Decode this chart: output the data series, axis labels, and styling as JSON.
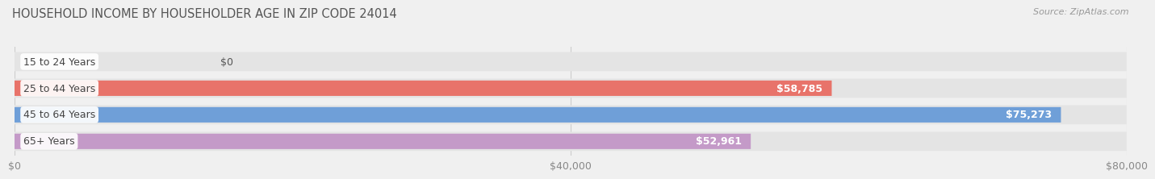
{
  "title": "HOUSEHOLD INCOME BY HOUSEHOLDER AGE IN ZIP CODE 24014",
  "source": "Source: ZipAtlas.com",
  "categories": [
    "15 to 24 Years",
    "25 to 44 Years",
    "45 to 64 Years",
    "65+ Years"
  ],
  "values": [
    0,
    58785,
    75273,
    52961
  ],
  "bar_colors": [
    "#f5c98a",
    "#e8736a",
    "#6f9fd8",
    "#c49ac8"
  ],
  "background_color": "#f0f0f0",
  "bar_background_color": "#e4e4e4",
  "xmax": 80000,
  "xticks": [
    0,
    40000,
    80000
  ],
  "xtick_labels": [
    "$0",
    "$40,000",
    "$80,000"
  ],
  "value_labels": [
    "$0",
    "$58,785",
    "$75,273",
    "$52,961"
  ],
  "title_fontsize": 10.5,
  "source_fontsize": 8,
  "tick_fontsize": 9,
  "bar_label_fontsize": 9,
  "category_fontsize": 9
}
